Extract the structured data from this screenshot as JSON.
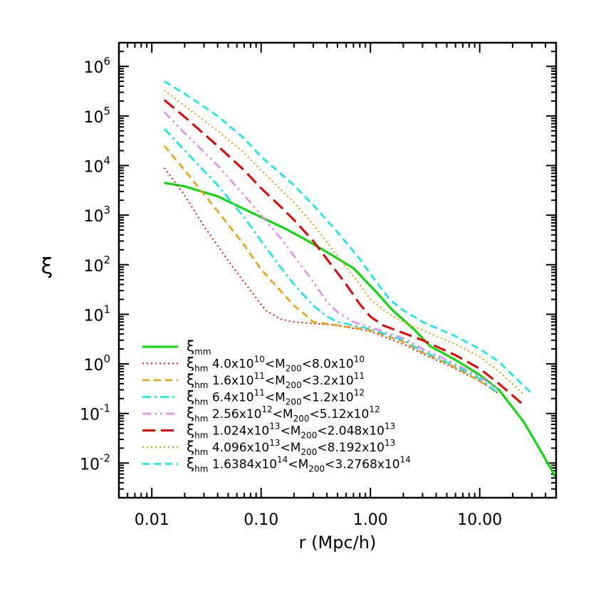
{
  "chart_data": {
    "type": "line",
    "title": "",
    "xlabel": "r (Mpc/h)",
    "ylabel": "ξ",
    "xscale": "log",
    "yscale": "log",
    "xlim": [
      0.005,
      50
    ],
    "ylim": [
      0.002,
      3000000
    ],
    "x_ticks": [
      0.01,
      0.1,
      1,
      10
    ],
    "x_tick_labels": [
      "0.01",
      "0.10",
      "1.00",
      "10.00"
    ],
    "y_ticks": [
      0.01,
      0.1,
      1,
      10,
      100,
      1000,
      10000,
      100000,
      1000000
    ],
    "y_tick_labels": [
      {
        "base": "10",
        "exp": "-2"
      },
      {
        "base": "10",
        "exp": "-1"
      },
      {
        "base": "10",
        "exp": "0"
      },
      {
        "base": "10",
        "exp": "1"
      },
      {
        "base": "10",
        "exp": "2"
      },
      {
        "base": "10",
        "exp": "3"
      },
      {
        "base": "10",
        "exp": "4"
      },
      {
        "base": "10",
        "exp": "5"
      },
      {
        "base": "10",
        "exp": "6"
      }
    ],
    "grid": false,
    "legend_position": "bottom-left",
    "series": [
      {
        "legend": [
          {
            "t": "ξ",
            "s": "normal"
          },
          {
            "t": "mm",
            "s": "sub"
          }
        ],
        "color": "#00dd00",
        "dash": "solid",
        "width": 3,
        "x": [
          0.013,
          0.02,
          0.04,
          0.08,
          0.17,
          0.25,
          0.4,
          0.7,
          1.1,
          1.6,
          2.5,
          3.5,
          6,
          10,
          15,
          25,
          35,
          50
        ],
        "y": [
          4500,
          3800,
          2400,
          1150,
          520,
          330,
          180,
          85,
          30,
          12,
          5,
          2.3,
          1.2,
          0.6,
          0.3,
          0.07,
          0.02,
          0.005
        ]
      },
      {
        "legend": [
          {
            "t": "ξ",
            "s": "normal"
          },
          {
            "t": "hm",
            "s": "sub"
          },
          {
            "t": " 4.0x10",
            "s": "normal"
          },
          {
            "t": "10",
            "s": "sup"
          },
          {
            "t": "<M",
            "s": "normal"
          },
          {
            "t": "200",
            "s": "sub"
          },
          {
            "t": "<8.0x10",
            "s": "normal"
          },
          {
            "t": "10",
            "s": "sup"
          }
        ],
        "color": "#ff1100",
        "dash": "dot",
        "width": 2,
        "x": [
          0.013,
          0.02,
          0.03,
          0.05,
          0.08,
          0.11,
          0.15,
          0.2,
          0.3,
          0.5,
          1,
          2,
          3,
          6,
          10,
          15
        ],
        "y": [
          9000,
          2500,
          600,
          120,
          30,
          12,
          8,
          7,
          6.5,
          6,
          4.5,
          2.5,
          1.6,
          0.8,
          0.45,
          0.25
        ]
      },
      {
        "legend": [
          {
            "t": "ξ",
            "s": "normal"
          },
          {
            "t": "hm",
            "s": "sub"
          },
          {
            "t": " 1.6x10",
            "s": "normal"
          },
          {
            "t": "11",
            "s": "sup"
          },
          {
            "t": "<M",
            "s": "normal"
          },
          {
            "t": "200",
            "s": "sub"
          },
          {
            "t": "<3.2x10",
            "s": "normal"
          },
          {
            "t": "11",
            "s": "sup"
          }
        ],
        "color": "#ff9900",
        "dash": "dash",
        "width": 2.5,
        "x": [
          0.013,
          0.02,
          0.04,
          0.07,
          0.1,
          0.15,
          0.2,
          0.25,
          0.3,
          0.5,
          1,
          2,
          3,
          6,
          10,
          15
        ],
        "y": [
          25000,
          8000,
          1200,
          250,
          80,
          30,
          15,
          10,
          7,
          6,
          4.8,
          2.8,
          1.7,
          0.85,
          0.45,
          0.25
        ]
      },
      {
        "legend": [
          {
            "t": "ξ",
            "s": "normal"
          },
          {
            "t": "hm",
            "s": "sub"
          },
          {
            "t": " 6.4x10",
            "s": "normal"
          },
          {
            "t": "11",
            "s": "sup"
          },
          {
            "t": "<M",
            "s": "normal"
          },
          {
            "t": "200",
            "s": "sub"
          },
          {
            "t": "<1.2x10",
            "s": "normal"
          },
          {
            "t": "12",
            "s": "sup"
          }
        ],
        "color": "#00eeee",
        "dash": "dashdot",
        "width": 2.5,
        "x": [
          0.013,
          0.02,
          0.04,
          0.07,
          0.1,
          0.15,
          0.2,
          0.3,
          0.4,
          0.5,
          0.7,
          1,
          2,
          3,
          6,
          10,
          15
        ],
        "y": [
          55000,
          20000,
          4000,
          900,
          300,
          90,
          40,
          15,
          9,
          7,
          6,
          5,
          3,
          1.8,
          0.9,
          0.5,
          0.25
        ]
      },
      {
        "legend": [
          {
            "t": "ξ",
            "s": "normal"
          },
          {
            "t": "hm",
            "s": "sub"
          },
          {
            "t": " 2.56x10",
            "s": "normal"
          },
          {
            "t": "12",
            "s": "sup"
          },
          {
            "t": "<M",
            "s": "normal"
          },
          {
            "t": "200",
            "s": "sub"
          },
          {
            "t": "<5.12x10",
            "s": "normal"
          },
          {
            "t": "12",
            "s": "sup"
          }
        ],
        "color": "#ee88ee",
        "dash": "dashdotdot",
        "width": 2.5,
        "x": [
          0.013,
          0.02,
          0.04,
          0.07,
          0.1,
          0.15,
          0.2,
          0.3,
          0.4,
          0.5,
          0.7,
          1,
          2,
          3,
          6,
          10,
          15
        ],
        "y": [
          120000,
          45000,
          10000,
          2500,
          1000,
          350,
          150,
          45,
          18,
          11,
          7,
          5.5,
          3.3,
          2,
          1,
          0.55,
          0.3
        ]
      },
      {
        "legend": [
          {
            "t": "ξ",
            "s": "normal"
          },
          {
            "t": "hm",
            "s": "sub"
          },
          {
            "t": " 1.024x10",
            "s": "normal"
          },
          {
            "t": "13",
            "s": "sup"
          },
          {
            "t": "<M",
            "s": "normal"
          },
          {
            "t": "200",
            "s": "sub"
          },
          {
            "t": "<2.048x10",
            "s": "normal"
          },
          {
            "t": "13",
            "s": "sup"
          }
        ],
        "color": "#ee0000",
        "dash": "longdash",
        "width": 3,
        "x": [
          0.013,
          0.02,
          0.04,
          0.07,
          0.1,
          0.15,
          0.2,
          0.3,
          0.4,
          0.6,
          0.8,
          1,
          1.3,
          2,
          3,
          6,
          10,
          15,
          25
        ],
        "y": [
          210000,
          95000,
          25000,
          8000,
          3500,
          1500,
          800,
          300,
          130,
          40,
          16,
          9,
          6,
          4.2,
          3,
          1.5,
          0.8,
          0.4,
          0.15
        ]
      },
      {
        "legend": [
          {
            "t": "ξ",
            "s": "normal"
          },
          {
            "t": "hm",
            "s": "sub"
          },
          {
            "t": " 4.096x10",
            "s": "normal"
          },
          {
            "t": "13",
            "s": "sup"
          },
          {
            "t": "<M",
            "s": "normal"
          },
          {
            "t": "200",
            "s": "sub"
          },
          {
            "t": "<8.192x10",
            "s": "normal"
          },
          {
            "t": "13",
            "s": "sup"
          }
        ],
        "color": "#ee9900",
        "dash": "dot",
        "width": 2,
        "x": [
          0.013,
          0.02,
          0.04,
          0.07,
          0.1,
          0.2,
          0.3,
          0.5,
          0.8,
          1,
          1.5,
          2,
          3,
          6,
          10,
          15,
          25
        ],
        "y": [
          330000,
          160000,
          50000,
          18000,
          8000,
          1800,
          650,
          150,
          40,
          20,
          10,
          7,
          4.8,
          2.5,
          1.4,
          0.7,
          0.25
        ]
      },
      {
        "legend": [
          {
            "t": "ξ",
            "s": "normal"
          },
          {
            "t": "hm",
            "s": "sub"
          },
          {
            "t": " 1.6384x10",
            "s": "normal"
          },
          {
            "t": "14",
            "s": "sup"
          },
          {
            "t": "<M",
            "s": "normal"
          },
          {
            "t": "200",
            "s": "sub"
          },
          {
            "t": "<3.2768x10",
            "s": "normal"
          },
          {
            "t": "14",
            "s": "sup"
          }
        ],
        "color": "#00eeee",
        "dash": "dash",
        "width": 2.5,
        "x": [
          0.013,
          0.02,
          0.04,
          0.07,
          0.1,
          0.2,
          0.3,
          0.5,
          0.8,
          1,
          1.5,
          2,
          3,
          6,
          10,
          15,
          30
        ],
        "y": [
          500000,
          280000,
          100000,
          35000,
          15000,
          4000,
          1600,
          450,
          130,
          65,
          20,
          12,
          7,
          3.6,
          2,
          1.1,
          0.25
        ]
      }
    ]
  }
}
